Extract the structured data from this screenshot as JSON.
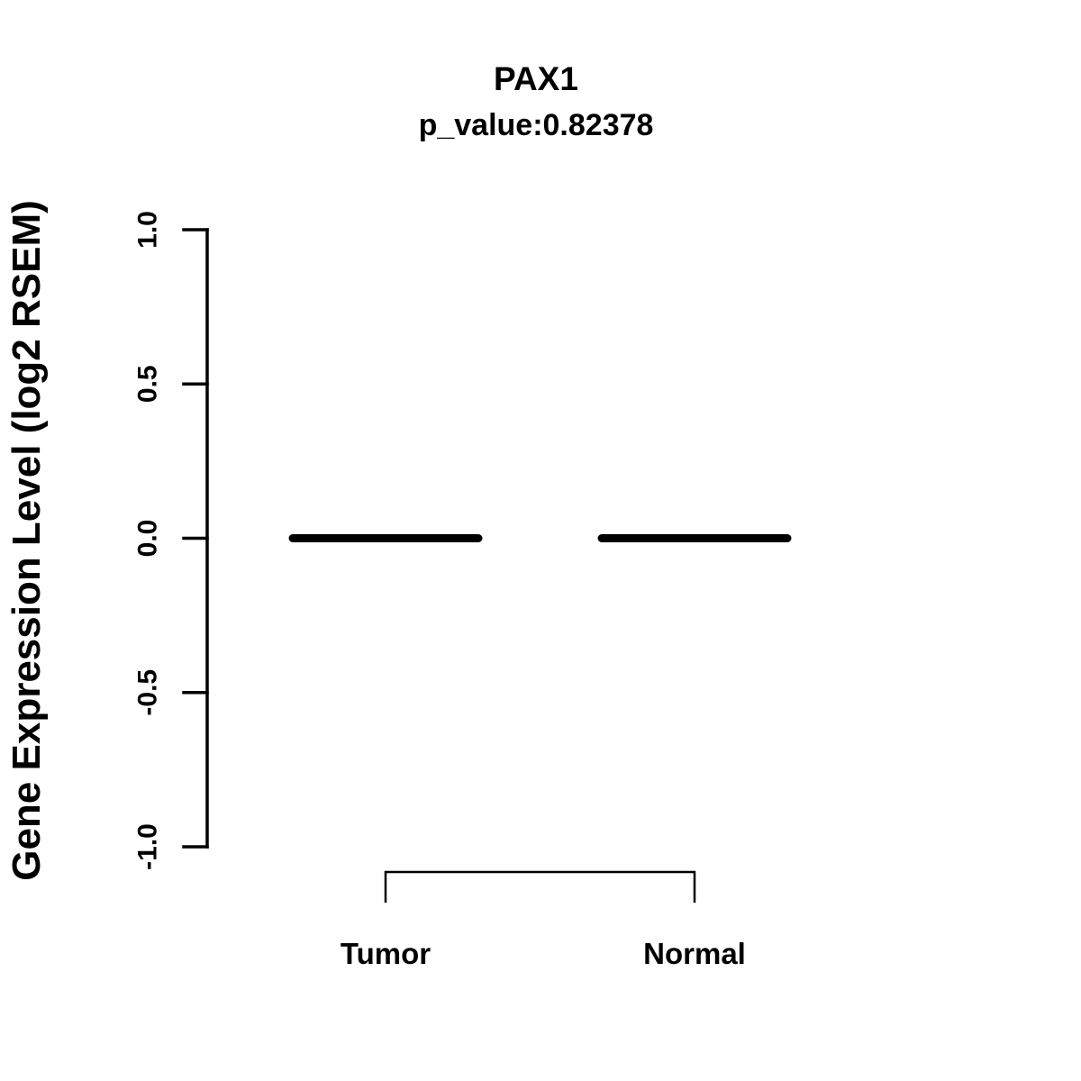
{
  "figure": {
    "title": "PAX1",
    "subtitle": "p_value:0.82378"
  },
  "chart_data": {
    "type": "boxplot",
    "title": "PAX1",
    "subtitle": "p_value:0.82378",
    "p_value": 0.82378,
    "gene": "PAX1",
    "xlabel": "",
    "ylabel": "Gene Expression Level (log2 RSEM)",
    "ylim": [
      -1.0,
      1.0
    ],
    "yticks": [
      -1.0,
      -0.5,
      0.0,
      0.5,
      1.0
    ],
    "ytick_labels": [
      "-1.0",
      "-0.5",
      "0.0",
      "0.5",
      "1.0"
    ],
    "categories": [
      "Tumor",
      "Normal"
    ],
    "series": [
      {
        "name": "Tumor",
        "median": 0.0,
        "q1": 0.0,
        "q3": 0.0,
        "whisker_low": 0.0,
        "whisker_high": 0.0
      },
      {
        "name": "Normal",
        "median": 0.0,
        "q1": 0.0,
        "q3": 0.0,
        "whisker_low": 0.0,
        "whisker_high": 0.0
      }
    ],
    "comparison_bracket": {
      "between": [
        "Tumor",
        "Normal"
      ]
    },
    "grid": false,
    "legend": "none",
    "colors": {
      "line": "#000000",
      "text": "#000000",
      "background": "#ffffff"
    }
  }
}
